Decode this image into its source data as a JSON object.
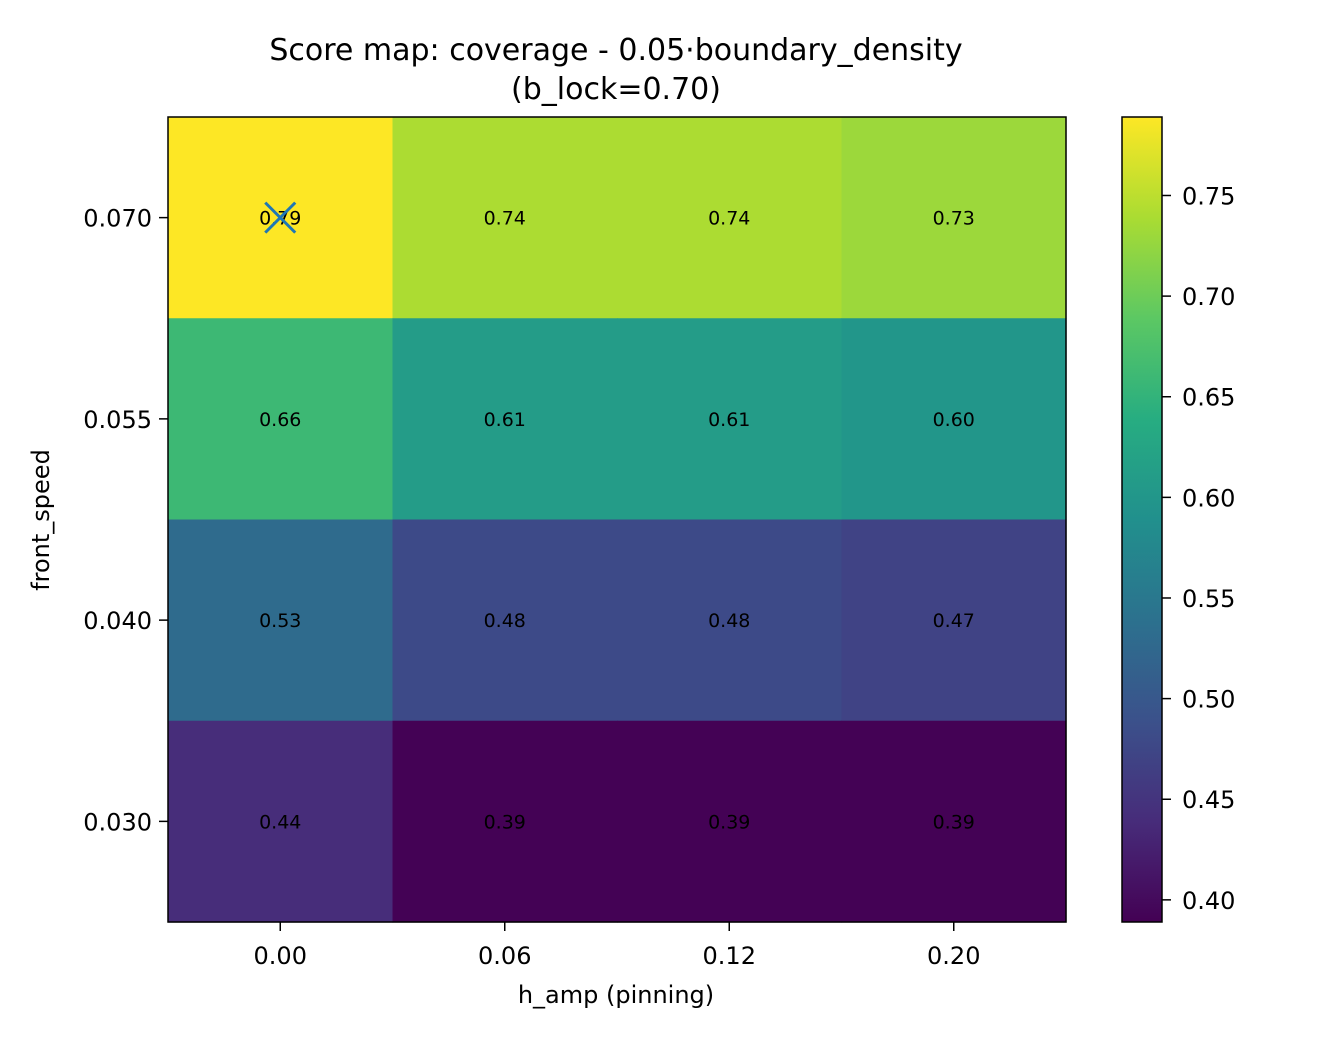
{
  "chart_data": {
    "type": "heatmap",
    "title_line1": "Score map: coverage - 0.05·boundary_density",
    "title_line2": "(b_lock=0.70)",
    "xlabel": "h_amp (pinning)",
    "ylabel": "front_speed",
    "x_categories": [
      "0.00",
      "0.06",
      "0.12",
      "0.20"
    ],
    "y_categories": [
      "0.070",
      "0.055",
      "0.040",
      "0.030"
    ],
    "values": [
      [
        0.79,
        0.74,
        0.74,
        0.73
      ],
      [
        0.66,
        0.61,
        0.61,
        0.6
      ],
      [
        0.53,
        0.48,
        0.48,
        0.47
      ],
      [
        0.44,
        0.39,
        0.39,
        0.39
      ]
    ],
    "cell_labels": [
      [
        "0.79",
        "0.74",
        "0.74",
        "0.73"
      ],
      [
        "0.66",
        "0.61",
        "0.61",
        "0.60"
      ],
      [
        "0.53",
        "0.48",
        "0.48",
        "0.47"
      ],
      [
        "0.44",
        "0.39",
        "0.39",
        "0.39"
      ]
    ],
    "best_marker": {
      "x": "0.00",
      "y": "0.070",
      "symbol": "x",
      "color": "#1f77b4"
    },
    "colormap": "viridis",
    "colorbar": {
      "range": [
        0.389,
        0.789
      ],
      "ticks": [
        0.4,
        0.45,
        0.5,
        0.55,
        0.6,
        0.65,
        0.7,
        0.75
      ],
      "tick_labels": [
        "0.40",
        "0.45",
        "0.50",
        "0.55",
        "0.60",
        "0.65",
        "0.70",
        "0.75"
      ]
    }
  }
}
